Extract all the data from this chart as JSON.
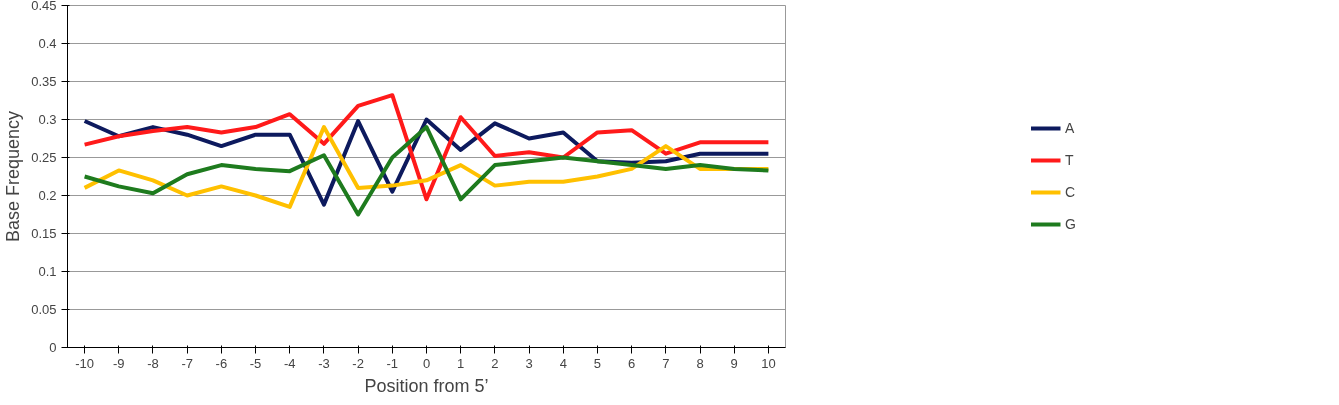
{
  "chart_data": {
    "type": "line",
    "xlabel": "Position from 5’",
    "ylabel": "Base Frequency",
    "categories": [
      "-10",
      "-9",
      "-8",
      "-7",
      "-6",
      "-5",
      "-4",
      "-3",
      "-2",
      "-1",
      "0",
      "1",
      "2",
      "3",
      "4",
      "5",
      "6",
      "7",
      "8",
      "9",
      "10"
    ],
    "series": [
      {
        "name": "A",
        "color": "#0d1a5e",
        "values": [
          0.298,
          0.278,
          0.29,
          0.28,
          0.265,
          0.28,
          0.28,
          0.188,
          0.298,
          0.205,
          0.3,
          0.26,
          0.295,
          0.275,
          0.283,
          0.245,
          0.243,
          0.245,
          0.255,
          0.255,
          0.255
        ]
      },
      {
        "name": "T",
        "color": "#ff1a1a",
        "values": [
          0.267,
          0.278,
          0.285,
          0.29,
          0.283,
          0.29,
          0.307,
          0.268,
          0.318,
          0.332,
          0.195,
          0.303,
          0.252,
          0.257,
          0.25,
          0.283,
          0.286,
          0.255,
          0.27,
          0.27,
          0.27
        ]
      },
      {
        "name": "C",
        "color": "#ffc000",
        "values": [
          0.21,
          0.233,
          0.22,
          0.2,
          0.212,
          0.2,
          0.185,
          0.29,
          0.21,
          0.213,
          0.22,
          0.24,
          0.213,
          0.218,
          0.218,
          0.225,
          0.235,
          0.265,
          0.235,
          0.235,
          0.235
        ]
      },
      {
        "name": "G",
        "color": "#1e7b1e",
        "values": [
          0.225,
          0.212,
          0.203,
          0.228,
          0.24,
          0.235,
          0.232,
          0.253,
          0.175,
          0.25,
          0.29,
          0.195,
          0.24,
          0.245,
          0.25,
          0.245,
          0.24,
          0.235,
          0.24,
          0.235,
          0.233
        ]
      }
    ],
    "ylim": [
      0,
      0.45
    ],
    "yticks": [
      0,
      0.05,
      0.1,
      0.15,
      0.2,
      0.25,
      0.3,
      0.35,
      0.4,
      0.45
    ],
    "grid": "y",
    "legend": "right",
    "marker": "none",
    "line_style": "solid"
  }
}
